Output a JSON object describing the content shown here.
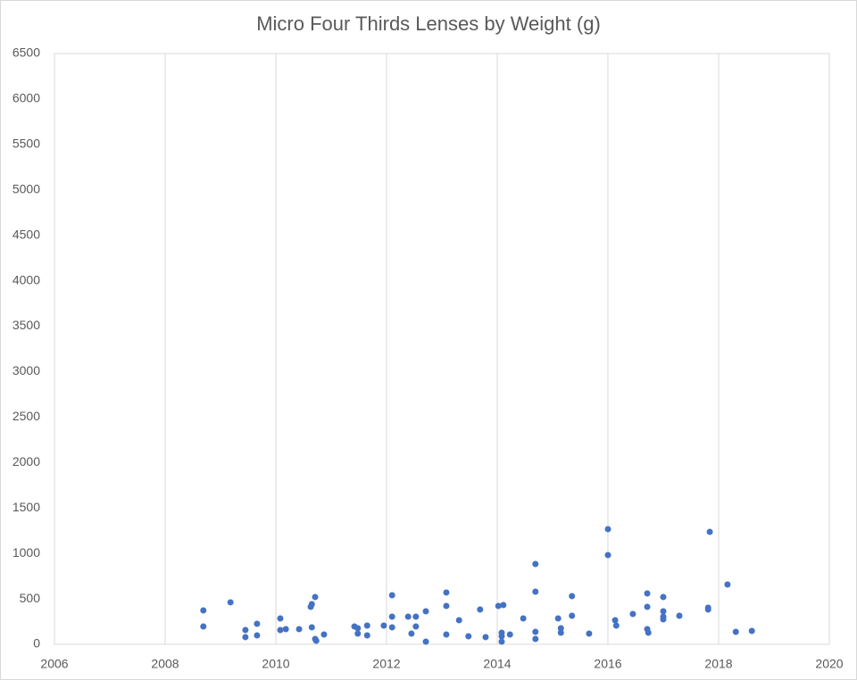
{
  "chart_data": {
    "type": "scatter",
    "title": "Micro Four Thirds Lenses by Weight (g)",
    "x": [
      2008.69,
      2008.69,
      2009.18,
      2009.45,
      2009.45,
      2009.66,
      2009.66,
      2010.08,
      2010.08,
      2010.18,
      2010.42,
      2010.63,
      2010.65,
      2010.65,
      2010.71,
      2010.71,
      2010.73,
      2010.87,
      2011.42,
      2011.48,
      2011.48,
      2011.65,
      2011.65,
      2011.95,
      2012.1,
      2012.1,
      2012.1,
      2012.39,
      2012.45,
      2012.53,
      2012.53,
      2012.71,
      2012.71,
      2013.08,
      2013.08,
      2013.08,
      2013.31,
      2013.48,
      2013.69,
      2013.79,
      2014.02,
      2014.11,
      2014.08,
      2014.08,
      2014.08,
      2014.23,
      2014.47,
      2014.69,
      2014.69,
      2014.69,
      2014.69,
      2015.1,
      2015.15,
      2015.15,
      2015.35,
      2015.35,
      2015.66,
      2016.0,
      2016.0,
      2016.13,
      2016.15,
      2016.45,
      2016.71,
      2016.71,
      2016.71,
      2016.73,
      2017.0,
      2017.0,
      2017.0,
      2017.0,
      2017.29,
      2017.81,
      2017.81,
      2017.84,
      2018.16,
      2018.31,
      2018.6
    ],
    "values": [
      373,
      196,
      462,
      157,
      79,
      226,
      98,
      285,
      157,
      167,
      167,
      412,
      442,
      187,
      520,
      59,
      39,
      108,
      196,
      177,
      118,
      206,
      98,
      206,
      540,
      304,
      187,
      304,
      118,
      304,
      196,
      363,
      29,
      570,
      422,
      108,
      265,
      88,
      383,
      79,
      422,
      432,
      128,
      88,
      29,
      108,
      285,
      884,
      579,
      137,
      59,
      285,
      177,
      128,
      530,
      314,
      118,
      1267,
      982,
      265,
      206,
      334,
      560,
      412,
      167,
      128,
      520,
      363,
      304,
      275,
      314,
      403,
      383,
      1237,
      658,
      137,
      147
    ],
    "color": "#4472c4",
    "xlim": [
      2006,
      2020
    ],
    "xticks": [
      2006,
      2008,
      2010,
      2012,
      2014,
      2016,
      2018,
      2020
    ],
    "ylim": [
      0,
      6500
    ],
    "yticks": [
      0,
      500,
      1000,
      1500,
      2000,
      2500,
      3000,
      3500,
      4000,
      4500,
      5000,
      5500,
      6000,
      6500
    ],
    "grid": "x"
  }
}
